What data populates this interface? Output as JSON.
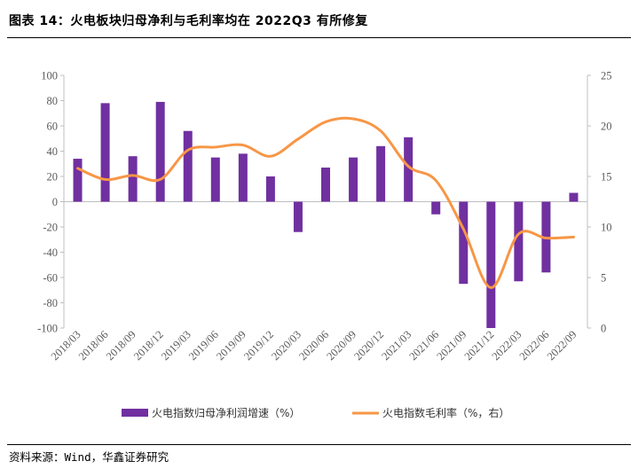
{
  "header": {
    "title": "图表 14：火电板块归母净利与毛利率均在 2022Q3 有所修复"
  },
  "footer": {
    "source": "资料来源：Wind，华鑫证券研究"
  },
  "colors": {
    "bar": "#7030a0",
    "line": "#f79646",
    "axis": "#bfbfbf",
    "tick_text": "#5a5a5a"
  },
  "chart_data": {
    "type": "bar",
    "categories": [
      "2018/03",
      "2018/06",
      "2018/09",
      "2018/12",
      "2019/03",
      "2019/06",
      "2019/09",
      "2019/12",
      "2020/03",
      "2020/06",
      "2020/09",
      "2020/12",
      "2021/03",
      "2021/06",
      "2021/09",
      "2021/12",
      "2022/03",
      "2022/06",
      "2022/09"
    ],
    "series": [
      {
        "name": "火电指数归母净利润增速（%）",
        "type": "bar",
        "axis": "left",
        "values": [
          34,
          78,
          36,
          79,
          56,
          35,
          38,
          20,
          -24,
          27,
          35,
          44,
          51,
          -10,
          -65,
          -100,
          -63,
          -56,
          7
        ]
      },
      {
        "name": "火电指数毛利率（%，右）",
        "type": "line",
        "axis": "right",
        "smooth": true,
        "values": [
          15.8,
          14.7,
          15.1,
          14.7,
          17.6,
          17.9,
          18.1,
          17.0,
          18.7,
          20.4,
          20.7,
          19.5,
          16.0,
          14.6,
          9.8,
          4.0,
          9.3,
          8.9,
          9.0
        ]
      }
    ],
    "left_axis": {
      "min": -100,
      "max": 100,
      "ticks": [
        "100",
        "80",
        "60",
        "40",
        "20",
        "0",
        "-20",
        "-40",
        "-60",
        "-80",
        "-100"
      ]
    },
    "right_axis": {
      "min": 0,
      "max": 25,
      "ticks": [
        "25",
        "20",
        "15",
        "10",
        "5",
        "0"
      ]
    },
    "legend": [
      "火电指数归母净利润增速（%）",
      "火电指数毛利率（%，右）"
    ],
    "legend_position": "bottom"
  }
}
